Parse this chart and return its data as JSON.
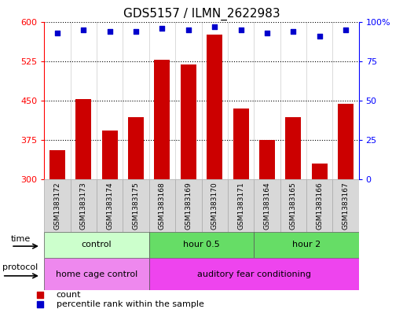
{
  "title": "GDS5157 / ILMN_2622983",
  "samples": [
    "GSM1383172",
    "GSM1383173",
    "GSM1383174",
    "GSM1383175",
    "GSM1383168",
    "GSM1383169",
    "GSM1383170",
    "GSM1383171",
    "GSM1383164",
    "GSM1383165",
    "GSM1383166",
    "GSM1383167"
  ],
  "counts": [
    355,
    453,
    393,
    418,
    528,
    519,
    575,
    435,
    375,
    418,
    330,
    443
  ],
  "percentiles": [
    93,
    95,
    94,
    94,
    96,
    95,
    97,
    95,
    93,
    94,
    91,
    95
  ],
  "ylim_left": [
    300,
    600
  ],
  "ylim_right": [
    0,
    100
  ],
  "yticks_left": [
    300,
    375,
    450,
    525,
    600
  ],
  "yticks_right": [
    0,
    25,
    50,
    75,
    100
  ],
  "bar_color": "#cc0000",
  "dot_color": "#0000cc",
  "time_groups": [
    {
      "label": "control",
      "start": 0,
      "end": 4,
      "color": "#ccffcc"
    },
    {
      "label": "hour 0.5",
      "start": 4,
      "end": 8,
      "color": "#66dd66"
    },
    {
      "label": "hour 2",
      "start": 8,
      "end": 12,
      "color": "#66dd66"
    }
  ],
  "protocol_groups": [
    {
      "label": "home cage control",
      "start": 0,
      "end": 4,
      "color": "#ee88ee"
    },
    {
      "label": "auditory fear conditioning",
      "start": 4,
      "end": 12,
      "color": "#ee44ee"
    }
  ],
  "time_label": "time",
  "protocol_label": "protocol",
  "legend_count_label": "count",
  "legend_pct_label": "percentile rank within the sample"
}
